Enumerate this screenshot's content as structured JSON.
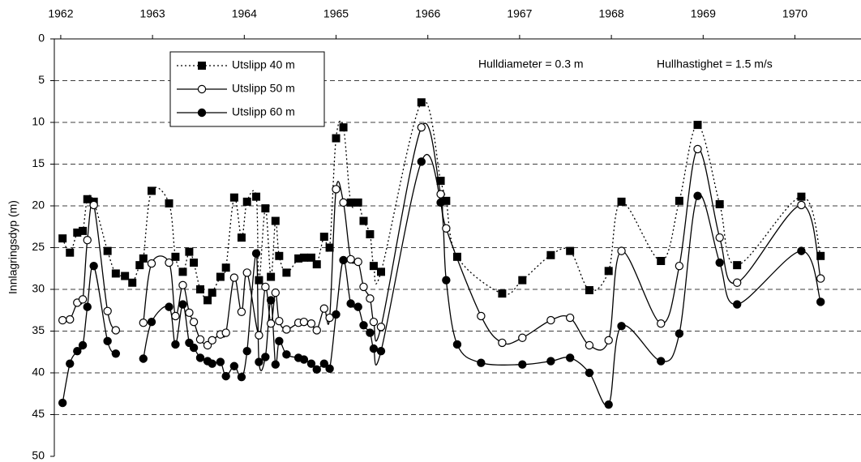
{
  "chart_data": {
    "type": "line",
    "y_label": "Innlagringsdyp (m)",
    "annotations": [
      "Hulldiameter = 0.3 m",
      "Hullhastighet = 1.5 m/s"
    ],
    "xlim": [
      1961.93,
      1970.72
    ],
    "xticks": [
      1962,
      1963,
      1964,
      1965,
      1966,
      1967,
      1968,
      1969,
      1970
    ],
    "ylim": [
      0,
      50
    ],
    "yticks": [
      0,
      5,
      10,
      15,
      20,
      25,
      30,
      35,
      40,
      45,
      50
    ],
    "y_inverted": true,
    "x_axis_position": "top",
    "grid": true,
    "smooth": true,
    "legend": "upper left",
    "series": [
      {
        "name": "Utslipp 40 m",
        "color": "#000000",
        "line_style": "dotted",
        "marker": "square",
        "x": [
          1962.02,
          1962.1,
          1962.18,
          1962.24,
          1962.29,
          1962.36,
          1962.51,
          1962.6,
          1962.7,
          1962.78,
          1962.86,
          1962.9,
          1962.99,
          1963.18,
          1963.25,
          1963.33,
          1963.4,
          1963.45,
          1963.52,
          1963.6,
          1963.65,
          1963.74,
          1963.8,
          1963.89,
          1963.97,
          1964.03,
          1964.13,
          1964.16,
          1964.23,
          1964.29,
          1964.34,
          1964.38,
          1964.46,
          1964.59,
          1964.65,
          1964.73,
          1964.79,
          1964.87,
          1964.93,
          1965.0,
          1965.08,
          1965.16,
          1965.24,
          1965.3,
          1965.37,
          1965.41,
          1965.49,
          1965.93,
          1966.14,
          1966.2,
          1966.32,
          1966.81,
          1967.03,
          1967.34,
          1967.55,
          1967.76,
          1967.97,
          1968.11,
          1968.54,
          1968.74,
          1968.94,
          1969.18,
          1969.37,
          1970.07,
          1970.28
        ],
        "values": [
          23.9,
          25.6,
          23.2,
          23.0,
          19.2,
          19.5,
          25.4,
          28.1,
          28.4,
          29.2,
          27.1,
          26.3,
          18.2,
          19.7,
          26.1,
          27.9,
          25.5,
          26.8,
          30.0,
          31.3,
          30.4,
          28.5,
          27.4,
          19.0,
          23.8,
          19.5,
          18.9,
          28.9,
          20.3,
          28.5,
          21.8,
          26.0,
          28.0,
          26.3,
          26.2,
          26.2,
          27.0,
          23.7,
          25.0,
          11.9,
          10.6,
          19.6,
          19.6,
          21.8,
          23.4,
          27.2,
          27.9,
          7.6,
          17.0,
          19.4,
          26.1,
          30.5,
          28.9,
          25.9,
          25.4,
          30.1,
          27.8,
          19.5,
          26.6,
          19.4,
          10.3,
          19.8,
          27.1,
          18.9,
          26.0
        ]
      },
      {
        "name": "Utslipp 50 m",
        "color": "#000000",
        "line_style": "solid",
        "marker": "open-circle",
        "x": [
          1962.02,
          1962.1,
          1962.18,
          1962.24,
          1962.29,
          1962.36,
          1962.51,
          1962.6,
          1962.78,
          1962.9,
          1962.99,
          1963.18,
          1963.25,
          1963.33,
          1963.4,
          1963.45,
          1963.52,
          1963.6,
          1963.65,
          1963.74,
          1963.8,
          1963.89,
          1963.97,
          1964.03,
          1964.16,
          1964.23,
          1964.29,
          1964.34,
          1964.38,
          1964.46,
          1964.59,
          1964.65,
          1964.73,
          1964.79,
          1964.87,
          1964.93,
          1965.0,
          1965.08,
          1965.16,
          1965.24,
          1965.3,
          1965.37,
          1965.41,
          1965.49,
          1965.93,
          1966.14,
          1966.2,
          1966.58,
          1966.81,
          1967.03,
          1967.34,
          1967.55,
          1967.76,
          1967.97,
          1968.11,
          1968.54,
          1968.74,
          1968.94,
          1969.18,
          1969.37,
          1970.07,
          1970.28
        ],
        "values": [
          33.7,
          33.6,
          31.6,
          31.2,
          24.1,
          19.9,
          32.6,
          34.9,
          null,
          34.0,
          26.9,
          26.8,
          33.2,
          29.5,
          32.8,
          33.9,
          36.0,
          36.7,
          36.1,
          35.4,
          35.2,
          28.6,
          32.7,
          28.0,
          35.5,
          29.7,
          34.1,
          30.4,
          33.8,
          34.8,
          34.0,
          33.9,
          34.1,
          34.9,
          32.3,
          33.4,
          18.0,
          19.6,
          26.4,
          26.7,
          29.7,
          31.1,
          33.9,
          34.5,
          10.6,
          18.6,
          22.7,
          33.2,
          36.4,
          35.8,
          33.7,
          33.4,
          36.7,
          36.1,
          25.4,
          34.1,
          27.2,
          13.2,
          23.8,
          29.2,
          19.9,
          28.7
        ]
      },
      {
        "name": "Utslipp 60 m",
        "color": "#000000",
        "line_style": "solid",
        "marker": "filled-circle",
        "x": [
          1962.02,
          1962.1,
          1962.18,
          1962.24,
          1962.29,
          1962.36,
          1962.51,
          1962.6,
          1962.78,
          1962.9,
          1962.99,
          1963.18,
          1963.25,
          1963.33,
          1963.4,
          1963.45,
          1963.52,
          1963.6,
          1963.65,
          1963.74,
          1963.8,
          1963.89,
          1963.97,
          1964.03,
          1964.13,
          1964.16,
          1964.23,
          1964.29,
          1964.34,
          1964.38,
          1964.46,
          1964.59,
          1964.65,
          1964.73,
          1964.79,
          1964.87,
          1964.93,
          1965.0,
          1965.08,
          1965.16,
          1965.24,
          1965.3,
          1965.37,
          1965.41,
          1965.49,
          1965.93,
          1966.14,
          1966.2,
          1966.32,
          1966.58,
          1967.03,
          1967.34,
          1967.55,
          1967.76,
          1967.97,
          1968.11,
          1968.54,
          1968.74,
          1968.94,
          1969.18,
          1969.37,
          1970.07,
          1970.28
        ],
        "values": [
          43.6,
          38.9,
          37.4,
          36.7,
          32.1,
          27.2,
          36.2,
          37.7,
          null,
          38.3,
          33.9,
          32.1,
          36.6,
          31.8,
          36.4,
          37.0,
          38.2,
          38.6,
          38.9,
          38.7,
          40.4,
          39.2,
          40.5,
          37.4,
          25.7,
          38.7,
          38.1,
          31.3,
          39.0,
          36.2,
          37.8,
          38.2,
          38.4,
          38.9,
          39.6,
          38.9,
          39.5,
          33.0,
          26.5,
          31.7,
          32.1,
          34.3,
          35.2,
          37.1,
          37.4,
          14.7,
          19.6,
          28.9,
          36.6,
          38.8,
          39.0,
          38.6,
          38.2,
          40.0,
          43.8,
          34.4,
          38.6,
          35.3,
          18.8,
          26.8,
          31.8,
          25.4,
          31.5
        ]
      }
    ]
  }
}
